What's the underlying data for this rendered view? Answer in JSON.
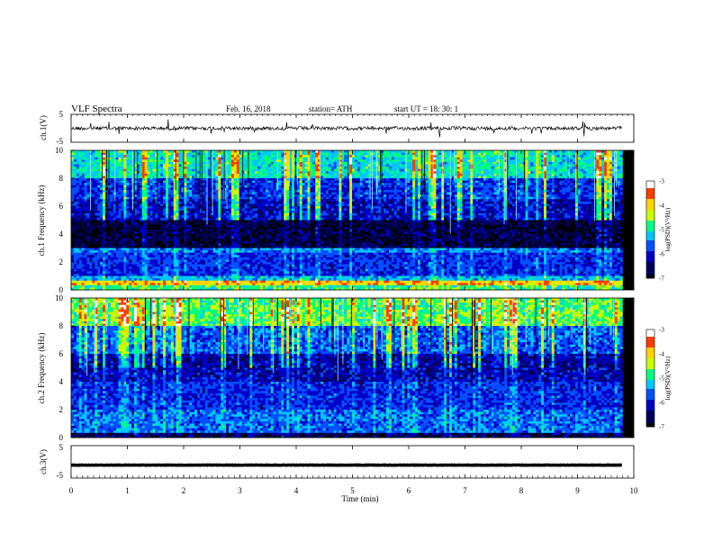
{
  "header": {
    "title": "VLF  Spectra",
    "date": "Feb. 16, 2018",
    "station": "station= ATH",
    "start": "start  UT  =   18: 30: 1"
  },
  "colors": {
    "scale": [
      "#000000",
      "#00005a",
      "#0000c8",
      "#0050ff",
      "#00c8ff",
      "#00ff80",
      "#c8ff00",
      "#ffd200",
      "#ff3c00",
      "#ffffff"
    ]
  },
  "chart_data": [
    {
      "type": "line",
      "panel": "ch1-waveform",
      "ylabel": "ch.1(V)",
      "ylim": [
        -5,
        5
      ],
      "yticks": [
        "5",
        "-5"
      ],
      "xlim": [
        0,
        10
      ],
      "values_description_level": 0.0
    },
    {
      "type": "heatmap",
      "panel": "ch1-spectrogram",
      "ylabel": "ch.1  Frequency  (kHz)",
      "ylim": [
        0,
        10
      ],
      "yticks": [
        "0",
        "2",
        "4",
        "6",
        "8",
        "10"
      ],
      "xlim": [
        0,
        9.8
      ],
      "colorbar": {
        "label": "log(PSD)(V²/Hz)",
        "range": [
          -7,
          -3
        ],
        "ticks": [
          "-3",
          "-4",
          "-5",
          "-6",
          "-7"
        ]
      },
      "profile": [
        {
          "f": [
            0,
            0.3
          ],
          "level": -4.8
        },
        {
          "f": [
            0.3,
            0.6
          ],
          "level": -3.9
        },
        {
          "f": [
            0.6,
            1.0
          ],
          "level": -5.3
        },
        {
          "f": [
            1.0,
            2.6
          ],
          "level": -5.9
        },
        {
          "f": [
            2.6,
            3.0
          ],
          "level": -5.5
        },
        {
          "f": [
            3.0,
            5.0
          ],
          "level": -6.7
        },
        {
          "f": [
            5.0,
            6.5
          ],
          "level": -6.1
        },
        {
          "f": [
            6.5,
            8.0
          ],
          "level": -5.8
        },
        {
          "f": [
            8.0,
            10.0
          ],
          "level": -5.0
        }
      ]
    },
    {
      "type": "heatmap",
      "panel": "ch2-spectrogram",
      "ylabel": "ch.2  Frequency  (kHz)",
      "ylim": [
        0,
        10
      ],
      "yticks": [
        "0",
        "2",
        "4",
        "6",
        "8",
        "10"
      ],
      "xlim": [
        0,
        9.8
      ],
      "colorbar": {
        "label": "log(PSD)(V²/Hz)",
        "range": [
          -7,
          -3
        ],
        "ticks": [
          "-3",
          "-4",
          "-5",
          "-6",
          "-7"
        ]
      },
      "profile": [
        {
          "f": [
            0,
            0.3
          ],
          "level": -6.6
        },
        {
          "f": [
            0.3,
            2.0
          ],
          "level": -5.6
        },
        {
          "f": [
            2.0,
            4.0
          ],
          "level": -5.9
        },
        {
          "f": [
            4.0,
            6.0
          ],
          "level": -6.2
        },
        {
          "f": [
            6.0,
            8.0
          ],
          "level": -5.6
        },
        {
          "f": [
            8.0,
            10.0
          ],
          "level": -4.6
        }
      ]
    },
    {
      "type": "line",
      "panel": "ch3-waveform",
      "ylabel": "ch.3(V)",
      "ylim": [
        -5,
        5
      ],
      "yticks": [
        "5",
        "-5"
      ],
      "xlim": [
        0,
        10
      ],
      "values_description_level": -1.0
    }
  ],
  "xaxis": {
    "label": "Time  (min)",
    "ticks": [
      "0",
      "1",
      "2",
      "3",
      "4",
      "5",
      "6",
      "7",
      "8",
      "9",
      "10"
    ]
  }
}
